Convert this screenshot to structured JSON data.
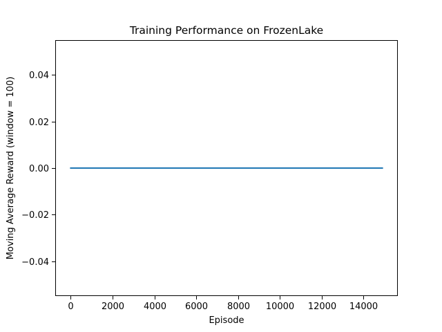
{
  "chart_data": {
    "type": "line",
    "title": "Training Performance on FrozenLake",
    "xlabel": "Episode",
    "ylabel": "Moving Average Reward (window = 100)",
    "xlim": [
      -740,
      15640
    ],
    "ylim": [
      -0.055,
      0.055
    ],
    "xticks": [
      0,
      2000,
      4000,
      6000,
      8000,
      10000,
      12000,
      14000
    ],
    "xtick_labels": [
      "0",
      "2000",
      "4000",
      "6000",
      "8000",
      "10000",
      "12000",
      "14000"
    ],
    "yticks": [
      -0.04,
      -0.02,
      0.0,
      0.02,
      0.04
    ],
    "ytick_labels": [
      "−0.04",
      "−0.02",
      "0.00",
      "0.02",
      "0.04"
    ],
    "grid": false,
    "series": [
      {
        "color": "#1f77b4",
        "x": [
          0,
          14901
        ],
        "y": [
          0.0,
          0.0
        ]
      }
    ]
  }
}
